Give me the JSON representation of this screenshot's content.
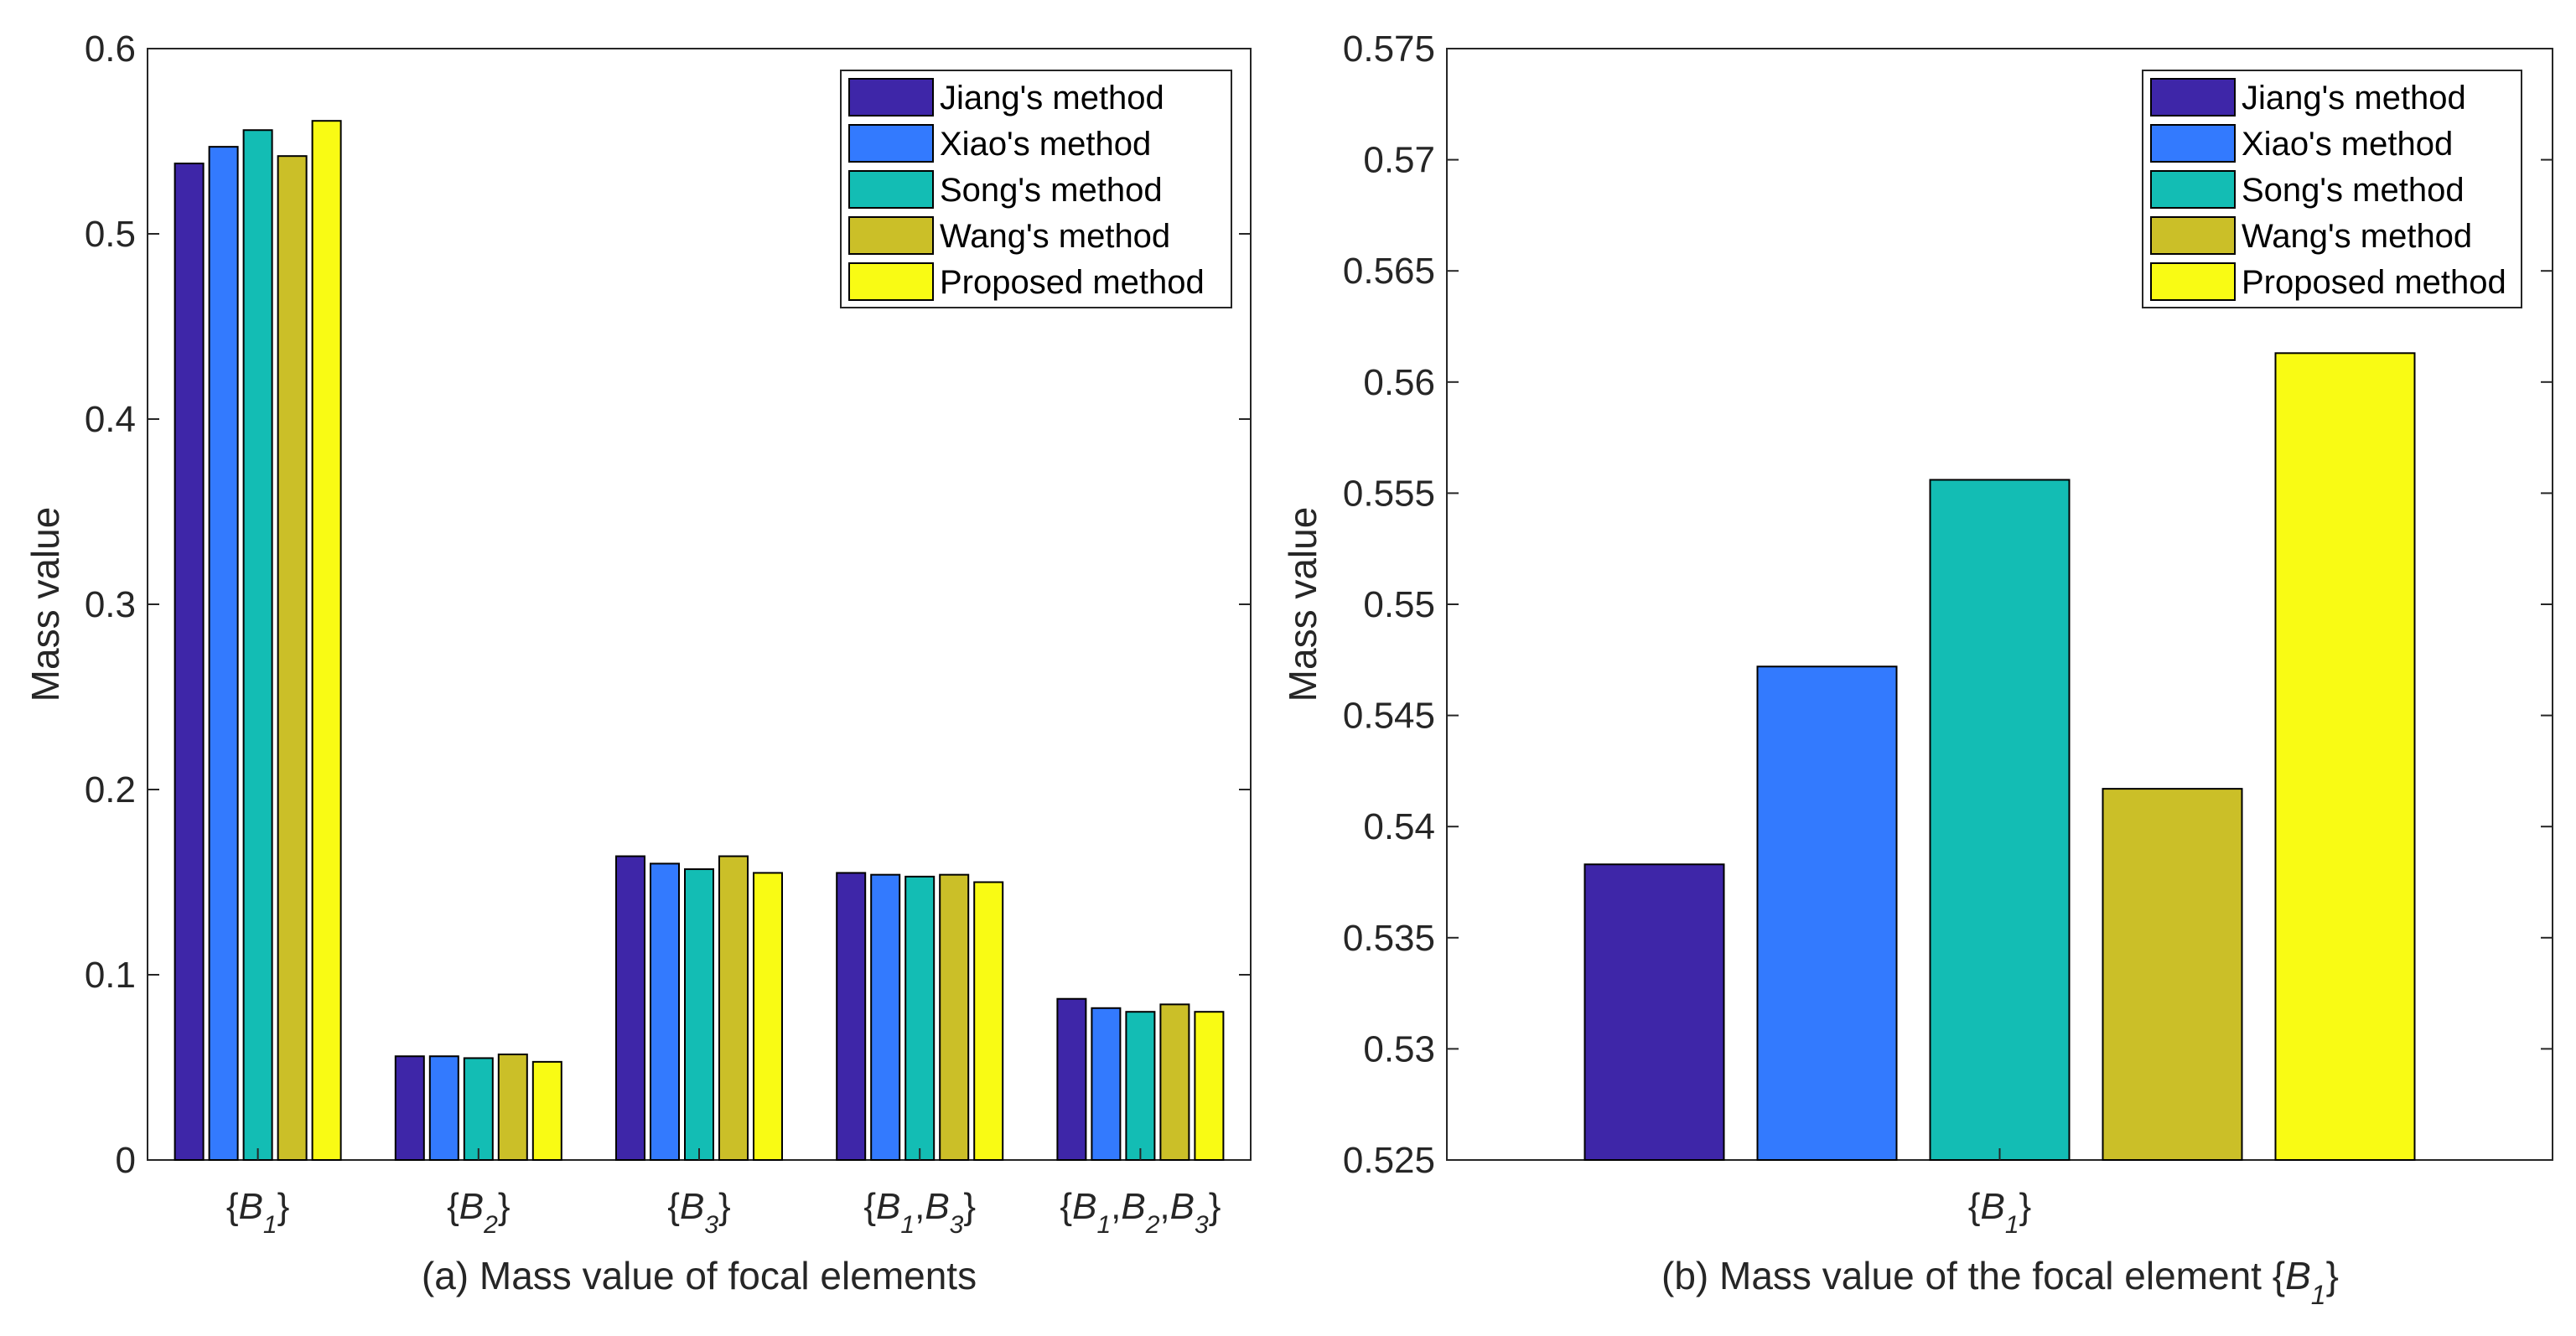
{
  "colors": {
    "series": [
      "#3e26a8",
      "#337afe",
      "#13bdb4",
      "#cbbf28",
      "#f9fb14"
    ],
    "axis": "#262626",
    "background": "#ffffff"
  },
  "chart_data": [
    {
      "type": "bar",
      "caption": "(a)  Mass value of focal elements",
      "xlabel": "",
      "ylabel": "Mass value",
      "ylim": [
        0,
        0.6
      ],
      "yticks": [
        "0",
        "0.1",
        "0.2",
        "0.3",
        "0.4",
        "0.5",
        "0.6"
      ],
      "categories": [
        "{B1}",
        "{B2}",
        "{B3}",
        "{B1,B3}",
        "{B1,B2,B3}"
      ],
      "category_parts": [
        [
          [
            "B",
            "1"
          ]
        ],
        [
          [
            "B",
            "2"
          ]
        ],
        [
          [
            "B",
            "3"
          ]
        ],
        [
          [
            "B",
            "1"
          ],
          [
            "B",
            "3"
          ]
        ],
        [
          [
            "B",
            "1"
          ],
          [
            "B",
            "2"
          ],
          [
            "B",
            "3"
          ]
        ]
      ],
      "legend_position": "top-right",
      "series": [
        {
          "name": "Jiang's method",
          "values": [
            0.538,
            0.056,
            0.164,
            0.155,
            0.087
          ]
        },
        {
          "name": "Xiao's method",
          "values": [
            0.547,
            0.056,
            0.16,
            0.154,
            0.082
          ]
        },
        {
          "name": "Song's method",
          "values": [
            0.556,
            0.055,
            0.157,
            0.153,
            0.08
          ]
        },
        {
          "name": "Wang's method",
          "values": [
            0.542,
            0.057,
            0.164,
            0.154,
            0.084
          ]
        },
        {
          "name": "Proposed method",
          "values": [
            0.561,
            0.053,
            0.155,
            0.15,
            0.08
          ]
        }
      ]
    },
    {
      "type": "bar",
      "caption_prefix": "(b)  Mass value of the focal element ",
      "caption_math": [
        "B",
        "1"
      ],
      "xlabel": "",
      "ylabel": "Mass value",
      "ylim": [
        0.525,
        0.575
      ],
      "yticks": [
        "0.525",
        "0.53",
        "0.535",
        "0.54",
        "0.545",
        "0.55",
        "0.555",
        "0.56",
        "0.565",
        "0.57",
        "0.575"
      ],
      "categories": [
        "{B1}"
      ],
      "category_parts": [
        [
          [
            "B",
            "1"
          ]
        ]
      ],
      "legend_position": "top-right",
      "series": [
        {
          "name": "Jiang's method",
          "values": [
            0.5383
          ]
        },
        {
          "name": "Xiao's method",
          "values": [
            0.5472
          ]
        },
        {
          "name": "Song's method",
          "values": [
            0.5556
          ]
        },
        {
          "name": "Wang's method",
          "values": [
            0.5417
          ]
        },
        {
          "name": "Proposed method",
          "values": [
            0.5613
          ]
        }
      ]
    }
  ]
}
